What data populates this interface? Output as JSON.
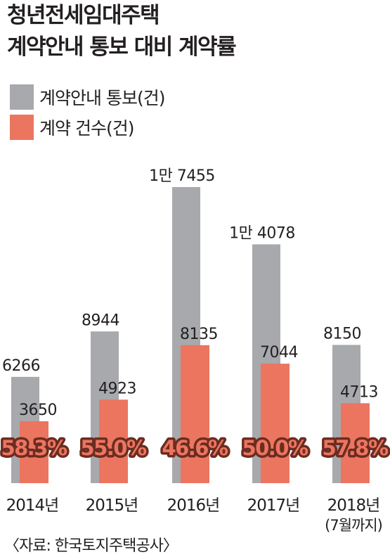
{
  "title": {
    "line1": "청년전세임대주택",
    "line2": "계약안내 통보 대비 계약률"
  },
  "source": "〈자료: 한국토지주택공사〉",
  "colors": {
    "notice": "#a7a9ac",
    "contract": "#ec7560",
    "rate_fill": "#ec7560",
    "rate_stroke": "#6b2c21",
    "text": "#231f20"
  },
  "chart_data": {
    "type": "bar",
    "categories": [
      "2014년",
      "2015년",
      "2016년",
      "2017년",
      "2018년"
    ],
    "category_notes": [
      "",
      "",
      "",
      "",
      "(7월까지)"
    ],
    "series": [
      {
        "name": "계약안내 통보(건)",
        "values": [
          6266,
          8944,
          17455,
          14078,
          8150
        ],
        "labels": [
          "6266",
          "8944",
          "1만 7455",
          "1만 4078",
          "8150"
        ]
      },
      {
        "name": "계약 건수(건)",
        "values": [
          3650,
          4923,
          8135,
          7044,
          4713
        ],
        "labels": [
          "3650",
          "4923",
          "8135",
          "7044",
          "4713"
        ]
      }
    ],
    "rates": [
      "58.3%",
      "55.0%",
      "46.6%",
      "50.0%",
      "57.8%"
    ],
    "ylim": [
      0,
      17455
    ],
    "grid": false,
    "legend": "top-left"
  }
}
